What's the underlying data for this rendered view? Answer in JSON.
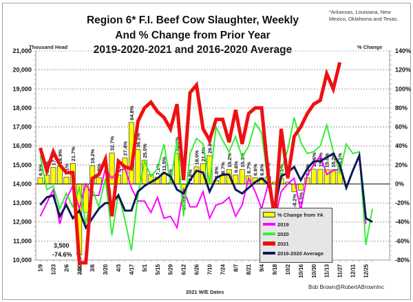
{
  "chart_data": {
    "type": "bar+line",
    "title": [
      "Region 6* F.I. Beef Cow Slaughter, Weekly",
      "And % Change from Prior Year",
      "2019-2020-2021 and 2016-2020 Average"
    ],
    "footnote": [
      "*Arkansas, Louisiana, New",
      "Mexico, Oklahoma and Texas."
    ],
    "ylabel_left": "Thousand Head",
    "ylabel_right": "% Change",
    "xlabel": "2021 W/E Dates",
    "credit": "Bob Brown@RobertABrownInc",
    "yticks_left": [
      "10,000",
      "11,000",
      "12,000",
      "13,000",
      "14,000",
      "15,000",
      "16,000",
      "17,000",
      "18,000",
      "19,000",
      "20,000",
      "21,000"
    ],
    "ylim_left": [
      10000,
      21000
    ],
    "yticks_right": [
      "-80%",
      "-60%",
      "-40%",
      "-20%",
      "0%",
      "20%",
      "40%",
      "60%",
      "80%",
      "100%",
      "120%",
      "140%"
    ],
    "ylim_right": [
      -80,
      140
    ],
    "x_tick_labels": [
      "1/9",
      "1/23",
      "2/6",
      "2/20",
      "3/6",
      "3/20",
      "4/3",
      "4/17",
      "5/1",
      "5/15",
      "5/29",
      "6/12",
      "6/26",
      "7/10",
      "7/24",
      "8/7",
      "8/21",
      "9/4",
      "9/18",
      "10/2",
      "10/16",
      "10/30",
      "11/13",
      "11/27",
      "12/11",
      "12/25"
    ],
    "annotation": [
      "3,500",
      "-74.6%"
    ],
    "legend": {
      "position": "bottom-right",
      "entries": [
        "% Change from YA",
        "2019",
        "2020",
        "2021",
        "2016-2020 Average"
      ]
    },
    "colors": {
      "bars": "#ffff00",
      "2019": "#ff00ff",
      "2020": "#33ee33",
      "2021": "#ee1111",
      "avg": "#0a1a55"
    },
    "pct_change_labels": [
      "6.5%",
      "9.6%",
      "17.3%",
      "18.9%",
      "7.1%",
      "21.7%",
      "-74.6%",
      "",
      "19.2%",
      "6.8%",
      "",
      "32.7%",
      "9.6%",
      "27.4%",
      "64.8%",
      "36.1%",
      "25.0%",
      "",
      "7.1%",
      "11.5%",
      "1.3%",
      "32.1%",
      "-10.0%",
      "0.8%",
      "18.0%",
      "21.4%",
      "29.8%",
      "3.8%",
      "8.7%",
      "15.2%",
      "9.6%",
      "15.3%",
      "8.7%",
      "6.6%",
      "6.6%",
      "7.7%",
      "",
      "6.1%",
      "",
      "-8.2%",
      "-6.5%",
      "6.6%",
      "15.6%",
      "15.5%",
      "15.0%",
      "15.2%",
      "15.1%"
    ],
    "pct_change": [
      6.5,
      9.6,
      17.3,
      18.9,
      7.1,
      21.7,
      -74.6,
      -30,
      19.2,
      6.8,
      null,
      32.7,
      9.6,
      27.4,
      64.8,
      36.1,
      25.0,
      10,
      7.1,
      11.5,
      1.3,
      32.1,
      -10.0,
      0.8,
      18.0,
      21.4,
      29.8,
      3.8,
      8.7,
      15.2,
      9.6,
      15.3,
      8.7,
      6.6,
      6.6,
      7.7,
      2,
      6.1,
      2,
      -8.2,
      -6.5,
      6.6,
      15.6,
      15.5,
      15.0,
      15.2,
      15.1
    ],
    "series": [
      {
        "name": "2021",
        "values": [
          15900,
          14700,
          15700,
          15000,
          14600,
          14600,
          3500,
          3500,
          14300,
          14500,
          15300,
          12300,
          15200,
          14900,
          14800,
          17300,
          18000,
          18300,
          17800,
          17500,
          16900,
          18200,
          14200,
          18800,
          19200,
          16900,
          16300,
          17400,
          17400,
          16200,
          17900,
          16100,
          17700,
          18000,
          18000,
          14500,
          12200,
          16900,
          14300,
          16500,
          17000,
          17700,
          18200,
          18400,
          19800,
          19000,
          20400
        ]
      },
      {
        "name": "2019",
        "values": [
          12300,
          13000,
          13700,
          11900,
          13200,
          13900,
          12700,
          14000,
          13400,
          13400,
          14800,
          14300,
          14700,
          14800,
          13800,
          13100,
          13100,
          12500,
          13300,
          12200,
          12300,
          11700,
          13700,
          12800,
          12800,
          13600,
          12200,
          12900,
          13000,
          13300,
          12300,
          12900,
          14300,
          13600,
          12700,
          14000,
          12100,
          13600,
          14000,
          14300,
          12600,
          14500,
          15000,
          15500,
          14500,
          14700,
          14800,
          null,
          null,
          15500,
          11900,
          null
        ]
      },
      {
        "name": "2020",
        "values": [
          15500,
          13700,
          13900,
          12700,
          13500,
          12800,
          13800,
          11900,
          13700,
          12800,
          14300,
          11300,
          13500,
          12100,
          10500,
          13400,
          15200,
          14400,
          14800,
          16100,
          14000,
          16300,
          12300,
          15600,
          16400,
          16100,
          14000,
          17000,
          16300,
          15700,
          16500,
          15400,
          16000,
          17200,
          16700,
          14000,
          12100,
          14700,
          15800,
          17500,
          16200,
          15600,
          15700,
          16000,
          17100,
          15700,
          14600,
          16100,
          15600,
          15700,
          10800,
          12700
        ]
      },
      {
        "name": "2016-2020 Average",
        "values": [
          12900,
          13300,
          13400,
          12300,
          12900,
          12200,
          12600,
          11700,
          12200,
          12700,
          13000,
          13000,
          13400,
          12600,
          12600,
          13600,
          13900,
          14100,
          14300,
          14600,
          14400,
          13700,
          13500,
          14200,
          14700,
          14600,
          13600,
          14300,
          14500,
          14500,
          13700,
          13500,
          13800,
          14100,
          14300,
          14000,
          12700,
          14400,
          14600,
          14900,
          14200,
          14800,
          15200,
          15200,
          15400,
          15600,
          15000,
          13800,
          14700,
          15500,
          12200,
          12000
        ]
      }
    ]
  }
}
